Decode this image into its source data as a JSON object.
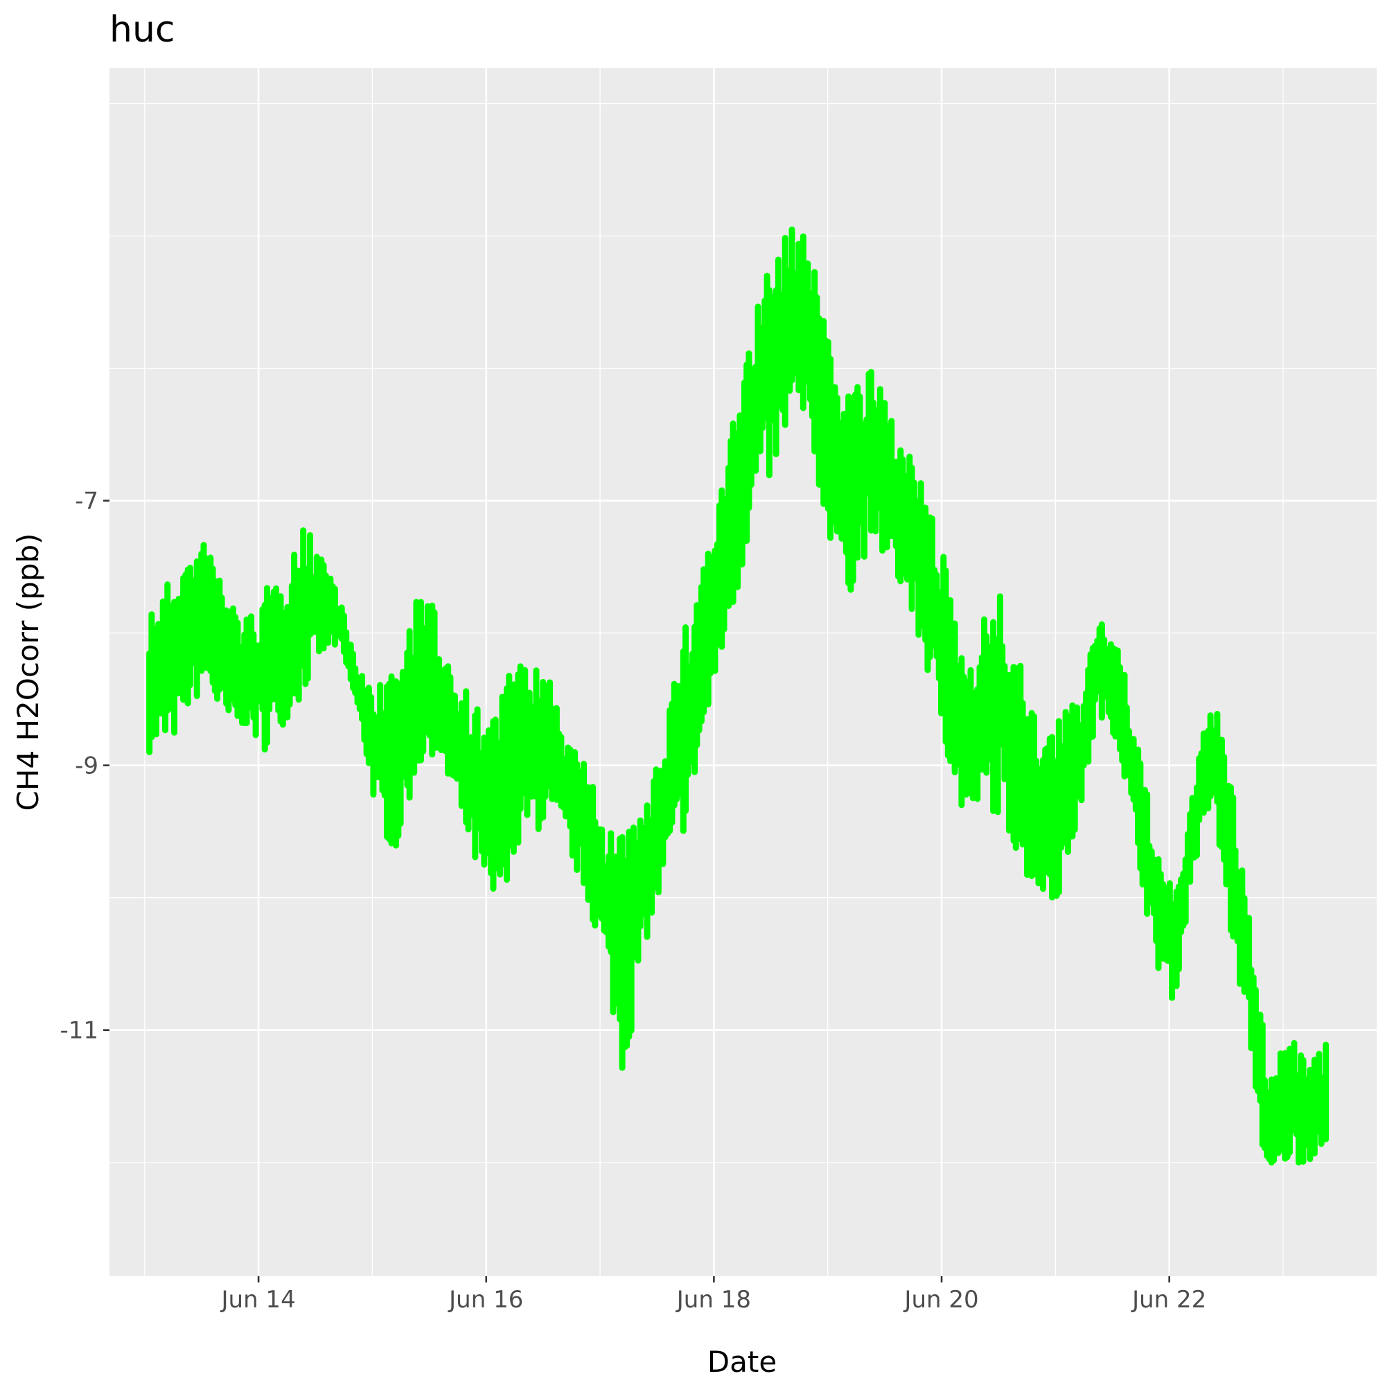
{
  "chart_data": {
    "type": "scatter",
    "title": "huc",
    "xlabel": "Date",
    "ylabel": "CH4 H2Ocorr (ppb)",
    "x_ticks": [
      "Jun 14",
      "Jun 16",
      "Jun 18",
      "Jun 20",
      "Jun 22"
    ],
    "y_ticks": [
      "-7",
      "-9",
      "-11"
    ],
    "xlim": [
      "2023-06-12 16:35",
      "2023-06-23 19:43"
    ],
    "ylim": [
      -12.86,
      -3.73
    ],
    "grid": true,
    "legend": "none",
    "colors": {
      "points": "#00ff00",
      "panel": "#ebebeb",
      "grid": "#ffffff"
    },
    "series": [
      {
        "x": [
          "2023-06-13 01:00",
          "2023-06-13 05:00",
          "2023-06-13 09:00",
          "2023-06-13 13:00",
          "2023-06-13 17:00",
          "2023-06-13 21:00",
          "2023-06-14 01:00",
          "2023-06-14 05:00",
          "2023-06-14 09:00",
          "2023-06-14 13:00",
          "2023-06-14 17:00",
          "2023-06-14 21:00",
          "2023-06-15 01:00",
          "2023-06-15 05:00",
          "2023-06-15 09:00",
          "2023-06-15 13:00",
          "2023-06-15 17:00",
          "2023-06-15 21:00",
          "2023-06-16 01:00",
          "2023-06-16 05:00",
          "2023-06-16 09:00",
          "2023-06-16 13:00",
          "2023-06-16 17:00",
          "2023-06-16 21:00",
          "2023-06-17 01:00",
          "2023-06-17 05:00",
          "2023-06-17 09:00",
          "2023-06-17 13:00",
          "2023-06-17 17:00",
          "2023-06-17 21:00",
          "2023-06-18 01:00",
          "2023-06-18 05:00",
          "2023-06-18 09:00",
          "2023-06-18 13:00",
          "2023-06-18 17:00",
          "2023-06-18 21:00",
          "2023-06-19 01:00",
          "2023-06-19 05:00",
          "2023-06-19 09:00",
          "2023-06-19 13:00",
          "2023-06-19 17:00",
          "2023-06-19 21:00",
          "2023-06-20 01:00",
          "2023-06-20 05:00",
          "2023-06-20 09:00",
          "2023-06-20 13:00",
          "2023-06-20 17:00",
          "2023-06-20 21:00",
          "2023-06-21 01:00",
          "2023-06-21 05:00",
          "2023-06-21 09:00",
          "2023-06-21 13:00",
          "2023-06-21 17:00",
          "2023-06-21 21:00",
          "2023-06-22 01:00",
          "2023-06-22 05:00",
          "2023-06-22 09:00",
          "2023-06-22 13:00",
          "2023-06-22 17:00",
          "2023-06-22 21:00",
          "2023-06-23 01:00",
          "2023-06-23 05:00",
          "2023-06-23 09:00"
        ],
        "y_low": [
          -8.9,
          -8.9,
          -8.6,
          -8.4,
          -8.8,
          -8.7,
          -8.9,
          -8.7,
          -8.5,
          -8.2,
          -8.1,
          -8.6,
          -9.4,
          -9.7,
          -9.1,
          -8.9,
          -9.3,
          -9.7,
          -10.2,
          -9.8,
          -9.5,
          -9.5,
          -9.6,
          -10.0,
          -10.5,
          -11.4,
          -10.4,
          -10.0,
          -9.6,
          -9.0,
          -8.3,
          -7.7,
          -7.0,
          -6.8,
          -6.4,
          -6.7,
          -7.4,
          -7.7,
          -7.3,
          -7.5,
          -7.8,
          -8.3,
          -8.9,
          -9.5,
          -9.3,
          -9.4,
          -9.8,
          -10.0,
          -10.0,
          -9.4,
          -8.6,
          -8.8,
          -9.6,
          -10.5,
          -10.8,
          -9.8,
          -9.3,
          -10.3,
          -11.1,
          -12.3,
          -12.0,
          -12.0,
          -11.9
        ],
        "y_high": [
          -7.8,
          -7.6,
          -7.4,
          -7.3,
          -7.6,
          -7.9,
          -7.7,
          -7.5,
          -7.2,
          -7.3,
          -7.7,
          -8.3,
          -8.4,
          -8.3,
          -7.7,
          -7.8,
          -8.2,
          -8.5,
          -8.6,
          -8.3,
          -8.2,
          -8.3,
          -8.8,
          -9.0,
          -9.4,
          -9.5,
          -9.4,
          -8.7,
          -8.1,
          -7.5,
          -7.0,
          -6.2,
          -5.5,
          -5.1,
          -4.9,
          -5.1,
          -5.8,
          -6.1,
          -6.0,
          -6.3,
          -6.6,
          -7.0,
          -7.5,
          -8.2,
          -7.8,
          -7.7,
          -8.3,
          -8.8,
          -8.6,
          -8.5,
          -7.8,
          -8.0,
          -8.8,
          -9.5,
          -10.0,
          -9.2,
          -8.4,
          -9.1,
          -10.2,
          -11.3,
          -11.0,
          -11.2,
          -11.1
        ]
      }
    ]
  }
}
